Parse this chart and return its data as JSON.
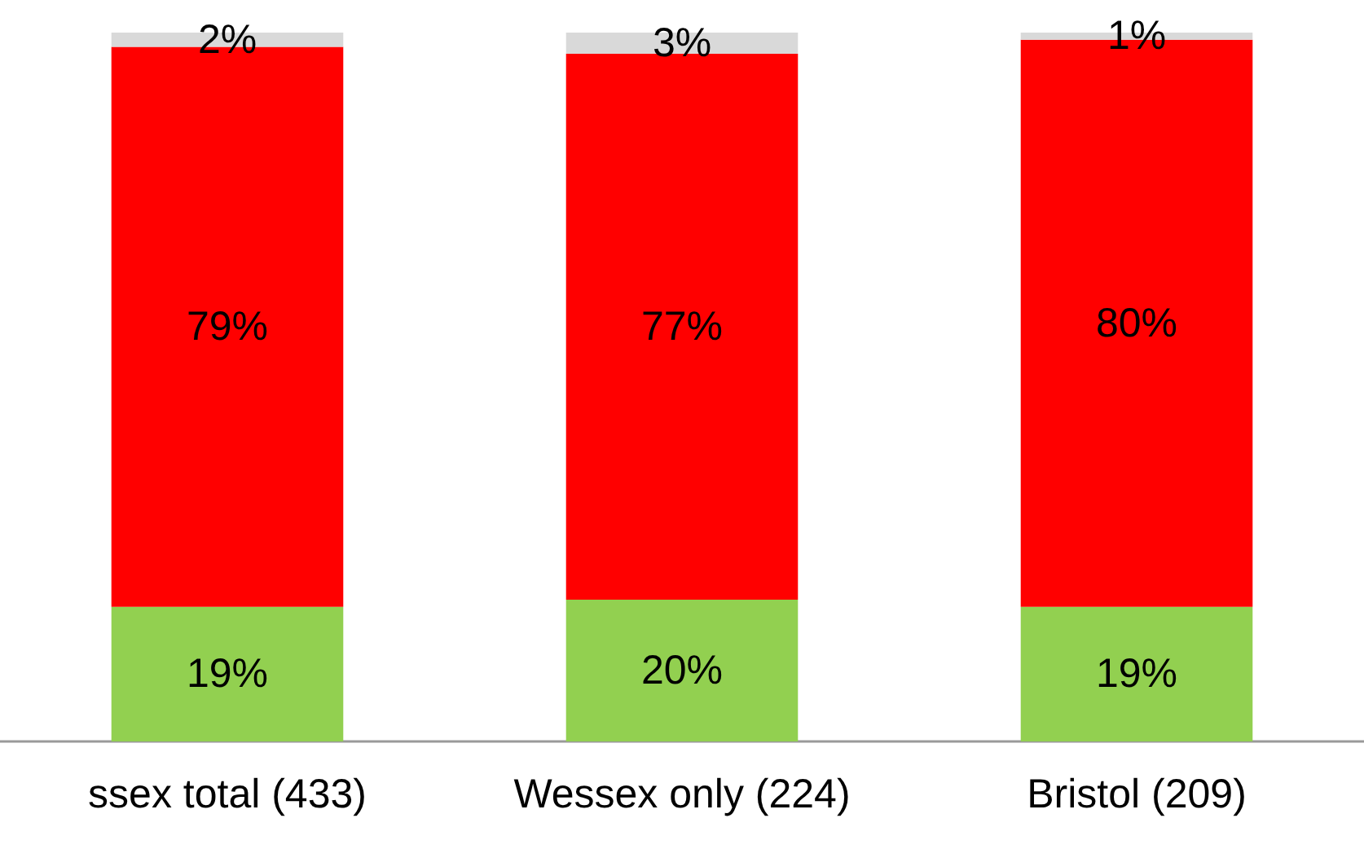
{
  "chart_data": {
    "type": "bar",
    "stacked": true,
    "categories": [
      "ssex total (433)",
      "Wessex only (224)",
      "Bristol (209)"
    ],
    "ylim": [
      0,
      100
    ],
    "series": [
      {
        "color": "#92d050",
        "values": [
          19,
          20,
          19
        ],
        "value_labels": [
          "19%",
          "20%",
          "19%"
        ]
      },
      {
        "color": "#ff0000",
        "values": [
          79,
          77,
          80
        ],
        "value_labels": [
          "79%",
          "77%",
          "80%"
        ]
      },
      {
        "color": "#d9d9d9",
        "values": [
          2,
          3,
          1
        ],
        "value_labels": [
          "2%",
          "3%",
          "1%"
        ]
      }
    ]
  }
}
